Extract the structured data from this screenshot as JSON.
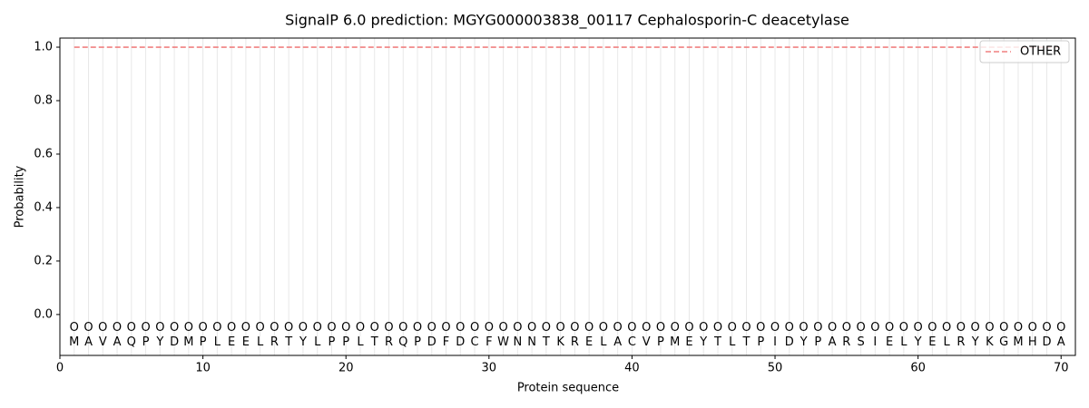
{
  "chart_data": {
    "type": "line",
    "title": "SignalP 6.0 prediction: MGYG000003838_00117 Cephalosporin-C deacetylase",
    "xlabel": "Protein sequence",
    "ylabel": "Probability",
    "x": [
      1,
      2,
      3,
      4,
      5,
      6,
      7,
      8,
      9,
      10,
      11,
      12,
      13,
      14,
      15,
      16,
      17,
      18,
      19,
      20,
      21,
      22,
      23,
      24,
      25,
      26,
      27,
      28,
      29,
      30,
      31,
      32,
      33,
      34,
      35,
      36,
      37,
      38,
      39,
      40,
      41,
      42,
      43,
      44,
      45,
      46,
      47,
      48,
      49,
      50,
      51,
      52,
      53,
      54,
      55,
      56,
      57,
      58,
      59,
      60,
      61,
      62,
      63,
      64,
      65,
      66,
      67,
      68,
      69,
      70
    ],
    "sequence": [
      "M",
      "A",
      "V",
      "A",
      "Q",
      "P",
      "Y",
      "D",
      "M",
      "P",
      "L",
      "E",
      "E",
      "L",
      "R",
      "T",
      "Y",
      "L",
      "P",
      "P",
      "L",
      "T",
      "R",
      "Q",
      "P",
      "D",
      "F",
      "D",
      "C",
      "F",
      "W",
      "N",
      "N",
      "T",
      "K",
      "R",
      "E",
      "L",
      "A",
      "C",
      "V",
      "P",
      "M",
      "E",
      "Y",
      "T",
      "L",
      "T",
      "P",
      "I",
      "D",
      "Y",
      "P",
      "A",
      "R",
      "S",
      "I",
      "E",
      "L",
      "Y",
      "E",
      "L",
      "R",
      "Y",
      "K",
      "G",
      "M",
      "H",
      "D",
      "A"
    ],
    "labels": [
      "O",
      "O",
      "O",
      "O",
      "O",
      "O",
      "O",
      "O",
      "O",
      "O",
      "O",
      "O",
      "O",
      "O",
      "O",
      "O",
      "O",
      "O",
      "O",
      "O",
      "O",
      "O",
      "O",
      "O",
      "O",
      "O",
      "O",
      "O",
      "O",
      "O",
      "O",
      "O",
      "O",
      "O",
      "O",
      "O",
      "O",
      "O",
      "O",
      "O",
      "O",
      "O",
      "O",
      "O",
      "O",
      "O",
      "O",
      "O",
      "O",
      "O",
      "O",
      "O",
      "O",
      "O",
      "O",
      "O",
      "O",
      "O",
      "O",
      "O",
      "O",
      "O",
      "O",
      "O",
      "O",
      "O",
      "O",
      "O",
      "O",
      "O"
    ],
    "series": [
      {
        "name": "OTHER",
        "color": "#f08080",
        "values": [
          1,
          1,
          1,
          1,
          1,
          1,
          1,
          1,
          1,
          1,
          1,
          1,
          1,
          1,
          1,
          1,
          1,
          1,
          1,
          1,
          1,
          1,
          1,
          1,
          1,
          1,
          1,
          1,
          1,
          1,
          1,
          1,
          1,
          1,
          1,
          1,
          1,
          1,
          1,
          1,
          1,
          1,
          1,
          1,
          1,
          1,
          1,
          1,
          1,
          1,
          1,
          1,
          1,
          1,
          1,
          1,
          1,
          1,
          1,
          1,
          1,
          1,
          1,
          1,
          1,
          1,
          1,
          1,
          1,
          1
        ]
      }
    ],
    "xlim": [
      0,
      71
    ],
    "ylim": [
      -0.153,
      1.034
    ],
    "xticks": [
      0,
      10,
      20,
      30,
      40,
      50,
      60,
      70
    ],
    "yticks": [
      {
        "value": 0,
        "label": "0.0"
      },
      {
        "value": 0.2,
        "label": "0.2"
      },
      {
        "value": 0.4,
        "label": "0.4"
      },
      {
        "value": 0.6,
        "label": "0.6"
      },
      {
        "value": 0.8,
        "label": "0.8"
      },
      {
        "value": 1,
        "label": "1.0"
      }
    ],
    "legend": "upper right"
  }
}
